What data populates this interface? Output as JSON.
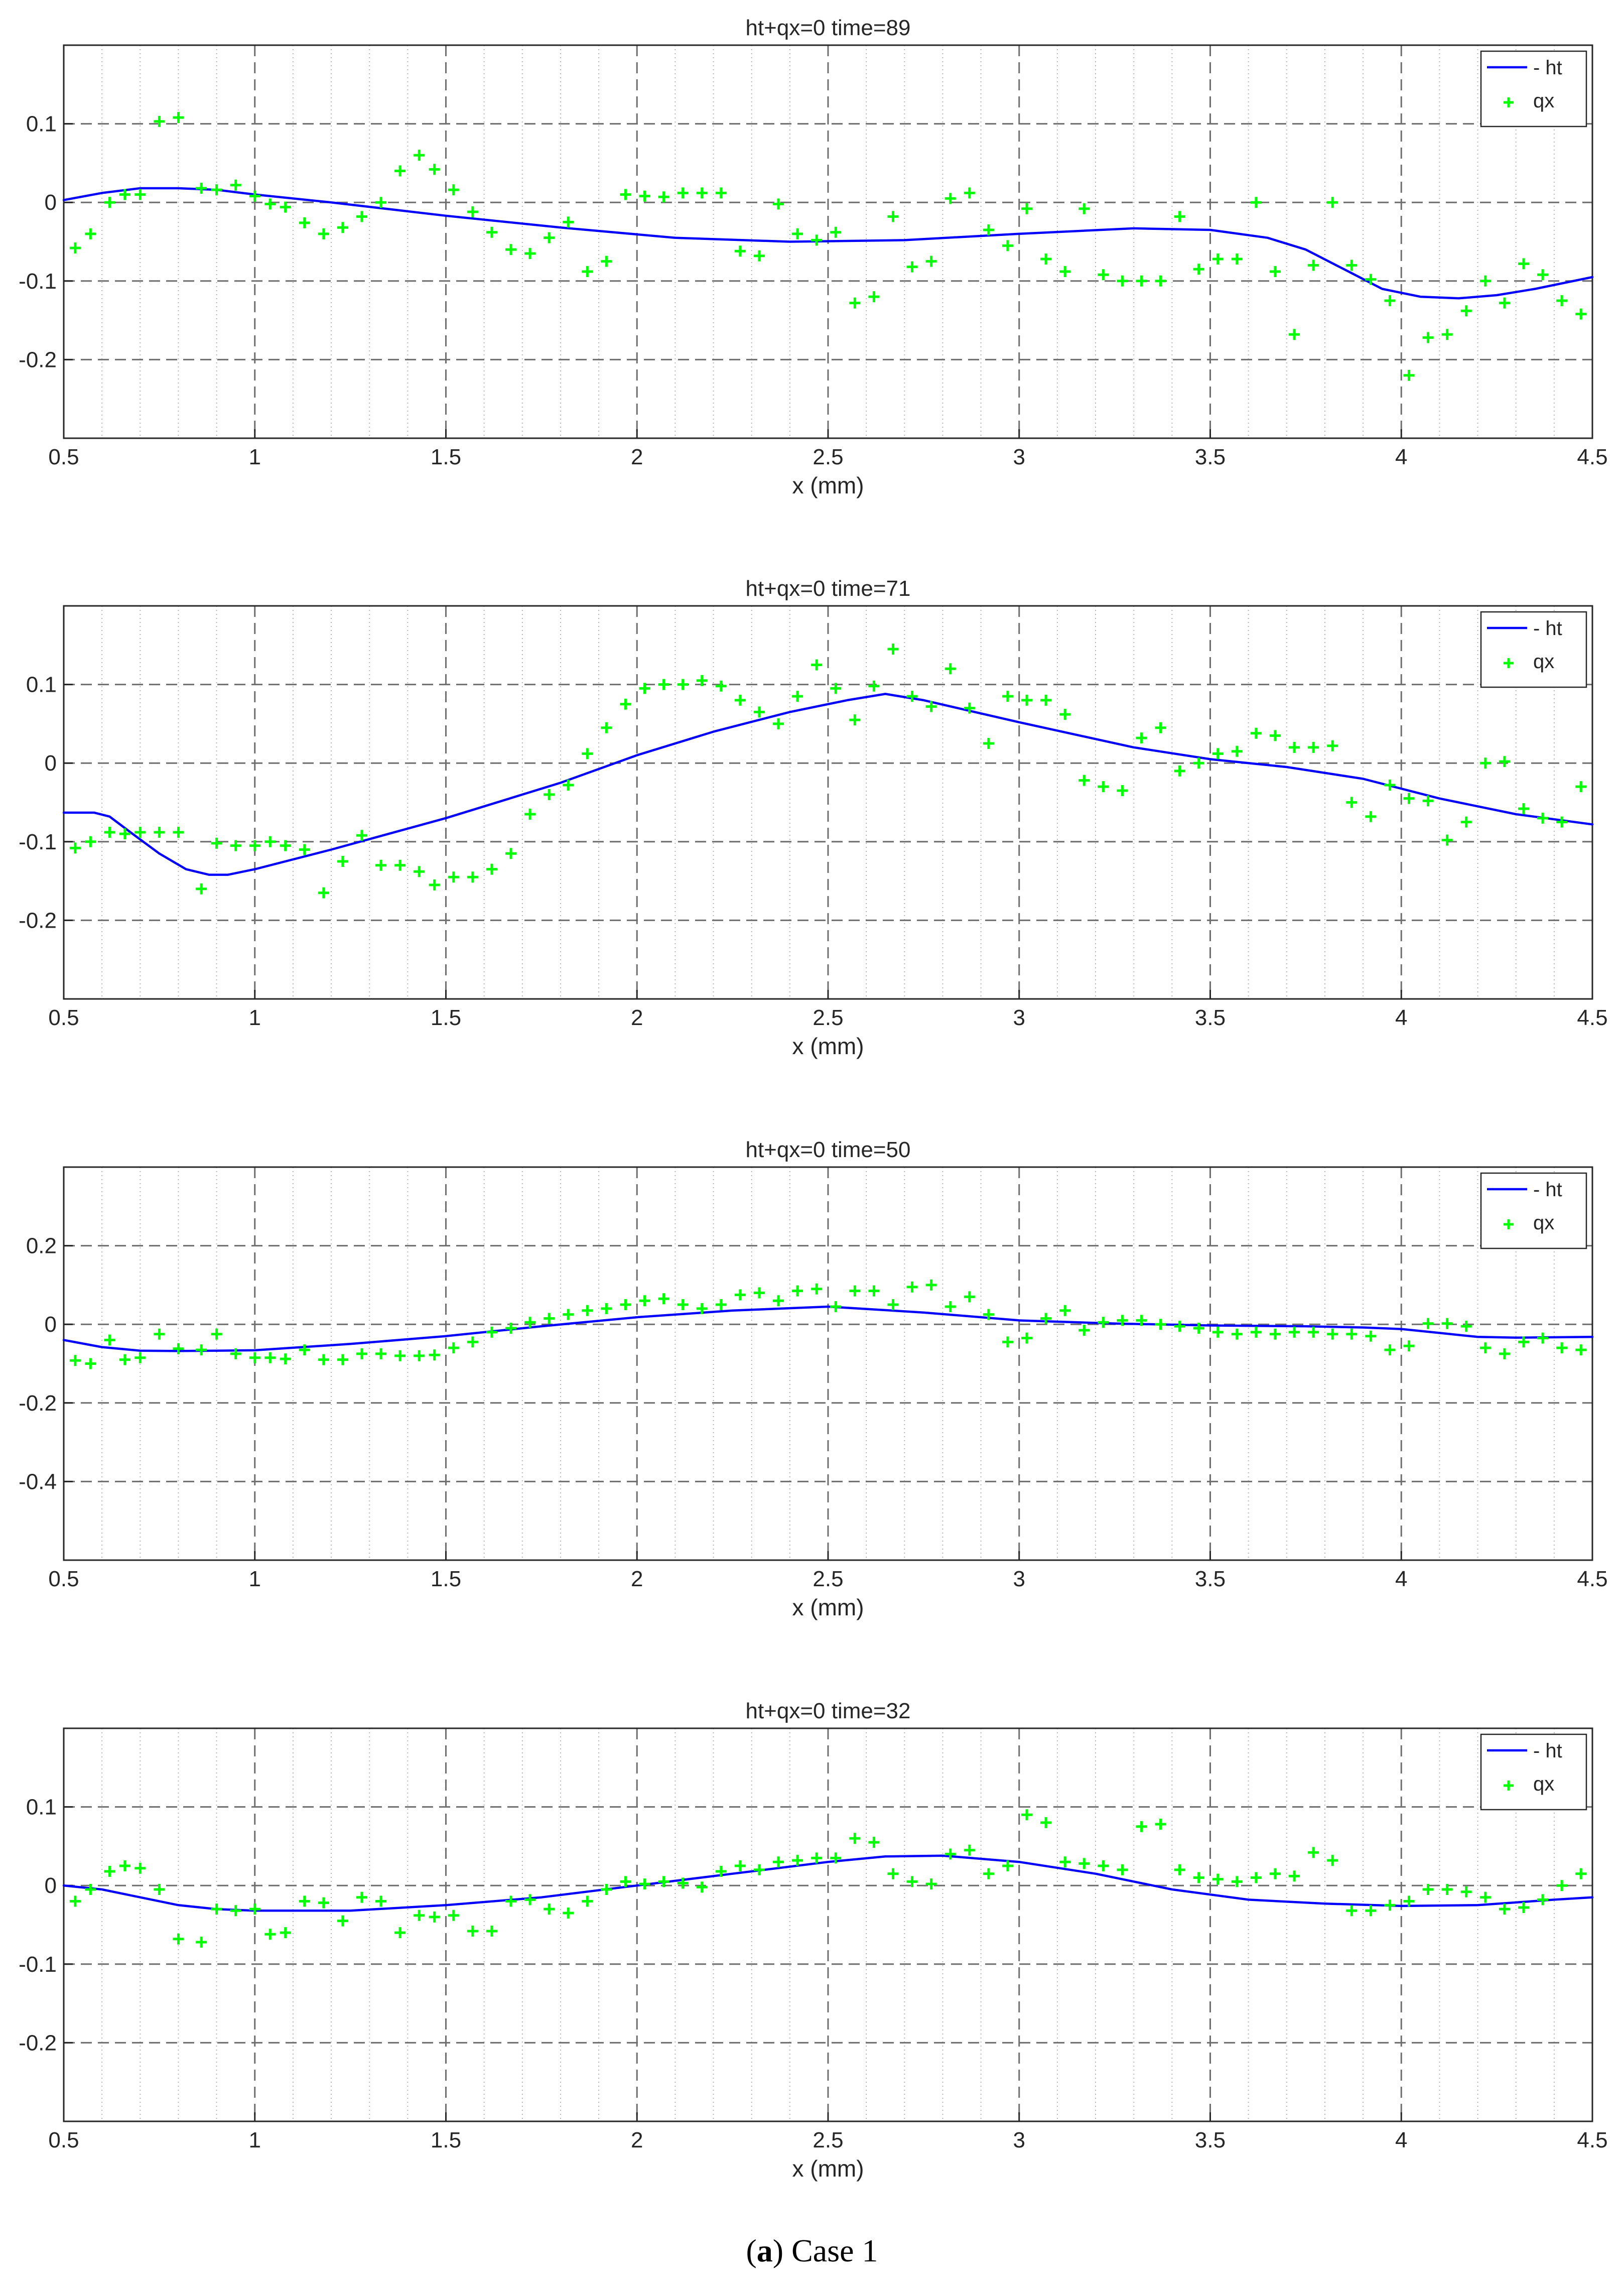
{
  "caption": {
    "label": "a",
    "text": "Case 1"
  },
  "chart_data": [
    {
      "type": "line",
      "title": "ht+qx=0  time=89",
      "xlabel": "x (mm)",
      "ylabel": "",
      "xlim": [
        0.5,
        4.5
      ],
      "ylim": [
        -0.3,
        0.2
      ],
      "xticks": [
        "0.5",
        "1",
        "1.5",
        "2",
        "2.5",
        "3",
        "3.5",
        "4",
        "4.5"
      ],
      "yticks": [
        0.1,
        0,
        -0.1,
        -0.2
      ],
      "yticklabels": [
        "0.1",
        "0",
        "-0.1",
        "-0.2"
      ],
      "grid": true,
      "legend_position": "top-right",
      "series": [
        {
          "name": "- ht",
          "style": "line",
          "color": "#0000ff",
          "x": [
            0.5,
            0.6,
            0.7,
            0.8,
            0.9,
            1.0,
            1.2,
            1.5,
            1.8,
            2.1,
            2.4,
            2.7,
            3.0,
            3.3,
            3.5,
            3.65,
            3.75,
            3.85,
            3.95,
            4.05,
            4.15,
            4.25,
            4.35,
            4.5
          ],
          "y": [
            0.003,
            0.012,
            0.018,
            0.018,
            0.016,
            0.01,
            0.0,
            -0.017,
            -0.032,
            -0.045,
            -0.05,
            -0.048,
            -0.04,
            -0.033,
            -0.035,
            -0.045,
            -0.06,
            -0.085,
            -0.11,
            -0.12,
            -0.122,
            -0.118,
            -0.11,
            -0.095
          ]
        },
        {
          "name": "qx",
          "style": "markers",
          "marker": "+",
          "color": "#00ff00",
          "x": [
            0.53,
            0.57,
            0.62,
            0.66,
            0.7,
            0.75,
            0.8,
            0.86,
            0.9,
            0.95,
            1.0,
            1.04,
            1.08,
            1.13,
            1.18,
            1.23,
            1.28,
            1.33,
            1.38,
            1.43,
            1.47,
            1.52,
            1.57,
            1.62,
            1.67,
            1.72,
            1.77,
            1.82,
            1.87,
            1.92,
            1.97,
            2.02,
            2.07,
            2.12,
            2.17,
            2.22,
            2.27,
            2.32,
            2.37,
            2.42,
            2.47,
            2.52,
            2.57,
            2.62,
            2.67,
            2.72,
            2.77,
            2.82,
            2.87,
            2.92,
            2.97,
            3.02,
            3.07,
            3.12,
            3.17,
            3.22,
            3.27,
            3.32,
            3.37,
            3.42,
            3.47,
            3.52,
            3.57,
            3.62,
            3.67,
            3.72,
            3.77,
            3.82,
            3.87,
            3.92,
            3.97,
            4.02,
            4.07,
            4.12,
            4.17,
            4.22,
            4.27,
            4.32,
            4.37,
            4.42,
            4.47
          ],
          "y": [
            -0.058,
            -0.04,
            0.0,
            0.01,
            0.01,
            0.103,
            0.108,
            0.018,
            0.016,
            0.022,
            0.008,
            -0.002,
            -0.006,
            -0.026,
            -0.04,
            -0.032,
            -0.018,
            0.0,
            0.04,
            0.06,
            0.042,
            0.016,
            -0.012,
            -0.038,
            -0.06,
            -0.065,
            -0.045,
            -0.025,
            -0.088,
            -0.075,
            0.01,
            0.008,
            0.007,
            0.012,
            0.012,
            0.012,
            -0.062,
            -0.068,
            -0.002,
            -0.04,
            -0.048,
            -0.038,
            -0.128,
            -0.12,
            -0.018,
            -0.082,
            -0.075,
            0.005,
            0.012,
            -0.035,
            -0.055,
            -0.008,
            -0.072,
            -0.088,
            -0.008,
            -0.092,
            -0.1,
            -0.1,
            -0.1,
            -0.018,
            -0.085,
            -0.072,
            -0.072,
            0.0,
            -0.088,
            -0.168,
            -0.08,
            0.0,
            -0.08,
            -0.098,
            -0.125,
            -0.22,
            -0.172,
            -0.168,
            -0.138,
            -0.1,
            -0.128,
            -0.078,
            -0.092,
            -0.125,
            -0.142
          ]
        }
      ]
    },
    {
      "type": "line",
      "title": "ht+qx=0  time=71",
      "xlabel": "x (mm)",
      "ylabel": "",
      "xlim": [
        0.5,
        4.5
      ],
      "ylim": [
        -0.3,
        0.2
      ],
      "xticks": [
        "0.5",
        "1",
        "1.5",
        "2",
        "2.5",
        "3",
        "3.5",
        "4",
        "4.5"
      ],
      "yticks": [
        0.1,
        0,
        -0.1,
        -0.2
      ],
      "yticklabels": [
        "0.1",
        "0",
        "-0.1",
        "-0.2"
      ],
      "grid": true,
      "legend_position": "top-right",
      "series": [
        {
          "name": "- ht",
          "style": "line",
          "color": "#0000ff",
          "x": [
            0.5,
            0.58,
            0.62,
            0.68,
            0.75,
            0.82,
            0.88,
            0.93,
            1.0,
            1.2,
            1.5,
            1.8,
            2.0,
            2.2,
            2.4,
            2.55,
            2.65,
            2.75,
            3.0,
            3.3,
            3.5,
            3.7,
            3.9,
            4.1,
            4.3,
            4.5
          ],
          "y": [
            -0.063,
            -0.063,
            -0.068,
            -0.09,
            -0.115,
            -0.135,
            -0.142,
            -0.142,
            -0.135,
            -0.11,
            -0.07,
            -0.025,
            0.01,
            0.04,
            0.065,
            0.08,
            0.088,
            0.08,
            0.052,
            0.02,
            0.005,
            -0.005,
            -0.02,
            -0.045,
            -0.065,
            -0.078
          ]
        },
        {
          "name": "qx",
          "style": "markers",
          "marker": "+",
          "color": "#00ff00",
          "x": [
            0.53,
            0.57,
            0.62,
            0.66,
            0.7,
            0.75,
            0.8,
            0.86,
            0.9,
            0.95,
            1.0,
            1.04,
            1.08,
            1.13,
            1.18,
            1.23,
            1.28,
            1.33,
            1.38,
            1.43,
            1.47,
            1.52,
            1.57,
            1.62,
            1.67,
            1.72,
            1.77,
            1.82,
            1.87,
            1.92,
            1.97,
            2.02,
            2.07,
            2.12,
            2.17,
            2.22,
            2.27,
            2.32,
            2.37,
            2.42,
            2.47,
            2.52,
            2.57,
            2.62,
            2.67,
            2.72,
            2.77,
            2.82,
            2.87,
            2.92,
            2.97,
            3.02,
            3.07,
            3.12,
            3.17,
            3.22,
            3.27,
            3.32,
            3.37,
            3.42,
            3.47,
            3.52,
            3.57,
            3.62,
            3.67,
            3.72,
            3.77,
            3.82,
            3.87,
            3.92,
            3.97,
            4.02,
            4.07,
            4.12,
            4.17,
            4.22,
            4.27,
            4.32,
            4.37,
            4.42,
            4.47
          ],
          "y": [
            -0.108,
            -0.1,
            -0.088,
            -0.09,
            -0.088,
            -0.088,
            -0.088,
            -0.16,
            -0.102,
            -0.105,
            -0.105,
            -0.1,
            -0.105,
            -0.11,
            -0.165,
            -0.125,
            -0.092,
            -0.13,
            -0.13,
            -0.138,
            -0.155,
            -0.145,
            -0.145,
            -0.135,
            -0.115,
            -0.065,
            -0.04,
            -0.028,
            0.012,
            0.045,
            0.075,
            0.095,
            0.1,
            0.1,
            0.105,
            0.098,
            0.08,
            0.065,
            0.05,
            0.085,
            0.125,
            0.095,
            0.055,
            0.098,
            0.145,
            0.085,
            0.072,
            0.12,
            0.07,
            0.025,
            0.085,
            0.08,
            0.08,
            0.062,
            -0.022,
            -0.03,
            -0.035,
            0.032,
            0.045,
            -0.01,
            0.0,
            0.012,
            0.015,
            0.038,
            0.035,
            0.02,
            0.02,
            0.022,
            -0.05,
            -0.068,
            -0.028,
            -0.045,
            -0.048,
            -0.098,
            -0.075,
            0.0,
            0.002,
            -0.058,
            -0.07,
            -0.075,
            -0.03
          ]
        }
      ]
    },
    {
      "type": "line",
      "title": "ht+qx=0  time=50",
      "xlabel": "x (mm)",
      "ylabel": "",
      "xlim": [
        0.5,
        4.5
      ],
      "ylim": [
        -0.6,
        0.4
      ],
      "xticks": [
        "0.5",
        "1",
        "1.5",
        "2",
        "2.5",
        "3",
        "3.5",
        "4",
        "4.5"
      ],
      "yticks": [
        0.2,
        0,
        -0.2,
        -0.4
      ],
      "yticklabels": [
        "0.2",
        "0",
        "-0.2",
        "-0.4"
      ],
      "grid": true,
      "legend_position": "top-right",
      "series": [
        {
          "name": "- ht",
          "style": "line",
          "color": "#0000ff",
          "x": [
            0.5,
            0.6,
            0.7,
            0.8,
            0.9,
            1.0,
            1.25,
            1.5,
            1.75,
            2.0,
            2.25,
            2.5,
            2.75,
            3.0,
            3.25,
            3.5,
            3.75,
            3.9,
            4.0,
            4.1,
            4.2,
            4.3,
            4.4,
            4.5
          ],
          "y": [
            -0.04,
            -0.058,
            -0.067,
            -0.068,
            -0.067,
            -0.066,
            -0.05,
            -0.03,
            -0.005,
            0.018,
            0.035,
            0.045,
            0.03,
            0.01,
            0.002,
            -0.003,
            -0.005,
            -0.008,
            -0.012,
            -0.022,
            -0.032,
            -0.034,
            -0.033,
            -0.032
          ]
        },
        {
          "name": "qx",
          "style": "markers",
          "marker": "+",
          "color": "#00ff00",
          "x": [
            0.53,
            0.57,
            0.62,
            0.66,
            0.7,
            0.75,
            0.8,
            0.86,
            0.9,
            0.95,
            1.0,
            1.04,
            1.08,
            1.13,
            1.18,
            1.23,
            1.28,
            1.33,
            1.38,
            1.43,
            1.47,
            1.52,
            1.57,
            1.62,
            1.67,
            1.72,
            1.77,
            1.82,
            1.87,
            1.92,
            1.97,
            2.02,
            2.07,
            2.12,
            2.17,
            2.22,
            2.27,
            2.32,
            2.37,
            2.42,
            2.47,
            2.52,
            2.57,
            2.62,
            2.67,
            2.72,
            2.77,
            2.82,
            2.87,
            2.92,
            2.97,
            3.02,
            3.07,
            3.12,
            3.17,
            3.22,
            3.27,
            3.32,
            3.37,
            3.42,
            3.47,
            3.52,
            3.57,
            3.62,
            3.67,
            3.72,
            3.77,
            3.82,
            3.87,
            3.92,
            3.97,
            4.02,
            4.07,
            4.12,
            4.17,
            4.22,
            4.27,
            4.32,
            4.37,
            4.42,
            4.47
          ],
          "y": [
            -0.092,
            -0.1,
            -0.04,
            -0.09,
            -0.085,
            -0.025,
            -0.062,
            -0.065,
            -0.025,
            -0.075,
            -0.085,
            -0.085,
            -0.088,
            -0.065,
            -0.09,
            -0.09,
            -0.075,
            -0.075,
            -0.08,
            -0.08,
            -0.078,
            -0.06,
            -0.045,
            -0.02,
            -0.01,
            0.005,
            0.015,
            0.025,
            0.035,
            0.04,
            0.05,
            0.06,
            0.065,
            0.05,
            0.04,
            0.05,
            0.075,
            0.08,
            0.06,
            0.085,
            0.09,
            0.045,
            0.085,
            0.085,
            0.05,
            0.095,
            0.1,
            0.045,
            0.07,
            0.025,
            -0.045,
            -0.035,
            0.015,
            0.035,
            -0.015,
            0.005,
            0.01,
            0.01,
            0.0,
            -0.005,
            -0.01,
            -0.02,
            -0.025,
            -0.02,
            -0.025,
            -0.02,
            -0.02,
            -0.025,
            -0.025,
            -0.03,
            -0.065,
            -0.055,
            0.002,
            0.002,
            -0.005,
            -0.06,
            -0.075,
            -0.045,
            -0.035,
            -0.06,
            -0.065
          ]
        }
      ]
    },
    {
      "type": "line",
      "title": "ht+qx=0  time=32",
      "xlabel": "x (mm)",
      "ylabel": "",
      "xlim": [
        0.5,
        4.5
      ],
      "ylim": [
        -0.3,
        0.2
      ],
      "xticks": [
        "0.5",
        "1",
        "1.5",
        "2",
        "2.5",
        "3",
        "3.5",
        "4",
        "4.5"
      ],
      "yticks": [
        0.1,
        0,
        -0.1,
        -0.2
      ],
      "yticklabels": [
        "0.1",
        "0",
        "-0.1",
        "-0.2"
      ],
      "grid": true,
      "legend_position": "top-right",
      "series": [
        {
          "name": "- ht",
          "style": "line",
          "color": "#0000ff",
          "x": [
            0.5,
            0.6,
            0.7,
            0.8,
            0.9,
            1.0,
            1.25,
            1.5,
            1.75,
            2.0,
            2.25,
            2.5,
            2.65,
            2.8,
            3.0,
            3.2,
            3.4,
            3.6,
            3.8,
            4.0,
            4.2,
            4.4,
            4.5
          ],
          "y": [
            0.0,
            -0.005,
            -0.015,
            -0.025,
            -0.03,
            -0.032,
            -0.032,
            -0.025,
            -0.015,
            0.0,
            0.015,
            0.03,
            0.037,
            0.038,
            0.03,
            0.015,
            -0.005,
            -0.018,
            -0.023,
            -0.026,
            -0.025,
            -0.018,
            -0.015
          ]
        },
        {
          "name": "qx",
          "style": "markers",
          "marker": "+",
          "color": "#00ff00",
          "x": [
            0.53,
            0.57,
            0.62,
            0.66,
            0.7,
            0.75,
            0.8,
            0.86,
            0.9,
            0.95,
            1.0,
            1.04,
            1.08,
            1.13,
            1.18,
            1.23,
            1.28,
            1.33,
            1.38,
            1.43,
            1.47,
            1.52,
            1.57,
            1.62,
            1.67,
            1.72,
            1.77,
            1.82,
            1.87,
            1.92,
            1.97,
            2.02,
            2.07,
            2.12,
            2.17,
            2.22,
            2.27,
            2.32,
            2.37,
            2.42,
            2.47,
            2.52,
            2.57,
            2.62,
            2.67,
            2.72,
            2.77,
            2.82,
            2.87,
            2.92,
            2.97,
            3.02,
            3.07,
            3.12,
            3.17,
            3.22,
            3.27,
            3.32,
            3.37,
            3.42,
            3.47,
            3.52,
            3.57,
            3.62,
            3.67,
            3.72,
            3.77,
            3.82,
            3.87,
            3.92,
            3.97,
            4.02,
            4.07,
            4.12,
            4.17,
            4.22,
            4.27,
            4.32,
            4.37,
            4.42,
            4.47
          ],
          "y": [
            -0.02,
            -0.005,
            0.018,
            0.025,
            0.022,
            -0.005,
            -0.068,
            -0.072,
            -0.03,
            -0.032,
            -0.03,
            -0.062,
            -0.06,
            -0.02,
            -0.022,
            -0.045,
            -0.015,
            -0.02,
            -0.06,
            -0.038,
            -0.04,
            -0.038,
            -0.058,
            -0.058,
            -0.02,
            -0.018,
            -0.03,
            -0.035,
            -0.02,
            -0.005,
            0.005,
            0.002,
            0.005,
            0.003,
            -0.002,
            0.018,
            0.025,
            0.02,
            0.03,
            0.032,
            0.035,
            0.035,
            0.06,
            0.055,
            0.015,
            0.005,
            0.002,
            0.04,
            0.045,
            0.015,
            0.025,
            0.09,
            0.08,
            0.03,
            0.028,
            0.025,
            0.02,
            0.075,
            0.078,
            0.02,
            0.01,
            0.008,
            0.005,
            0.01,
            0.015,
            0.012,
            0.042,
            0.032,
            -0.032,
            -0.032,
            -0.025,
            -0.02,
            -0.005,
            -0.005,
            -0.008,
            -0.015,
            -0.03,
            -0.028,
            -0.018,
            0.0,
            0.015
          ]
        }
      ]
    }
  ]
}
